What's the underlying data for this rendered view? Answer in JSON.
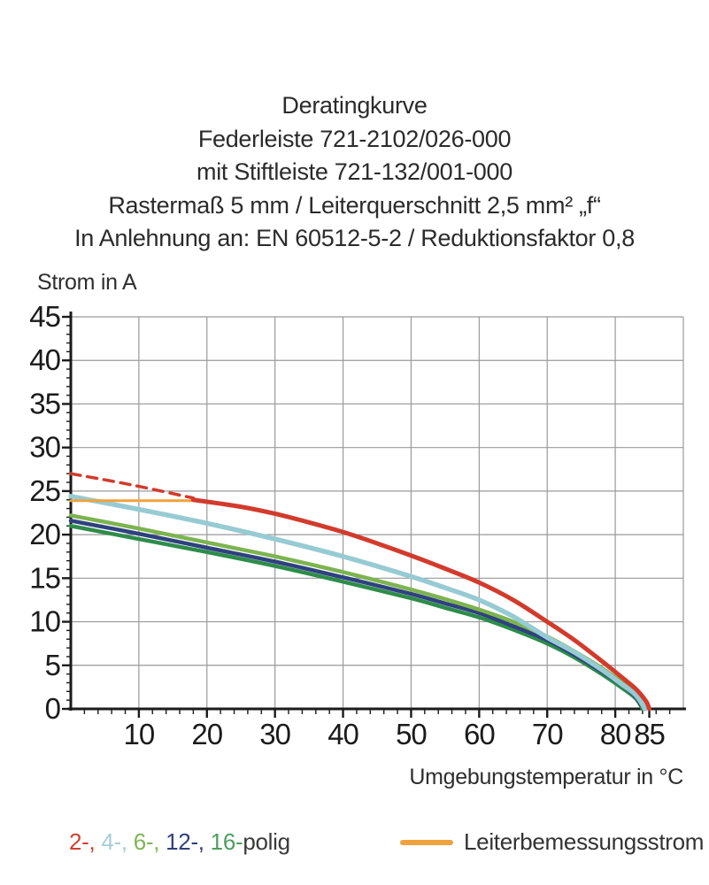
{
  "title": {
    "lines": [
      "Deratingkurve",
      "Federleiste 721-2102/026-000",
      "mit Stiftleiste 721-132/001-000",
      "Rastermaß 5 mm / Leiterquerschnitt 2,5 mm² „f“",
      "In Anlehnung an: EN 60512-5-2 / Reduktionsfaktor 0,8"
    ]
  },
  "legend": {
    "pole_tokens": [
      {
        "text": "2-,",
        "color": "#d0402f"
      },
      {
        "text": " 4-,",
        "color": "#a5ced4"
      },
      {
        "text": " 6-,",
        "color": "#7eb656"
      },
      {
        "text": " 12-,",
        "color": "#2e3f7c"
      },
      {
        "text": " 16-",
        "color": "#4d9f5f"
      },
      {
        "text": "polig",
        "color": "#3a3a3a"
      }
    ],
    "current_label": "Leiterbemessungsstrom",
    "current_color": "#f0a23c"
  },
  "chart_data": {
    "type": "line",
    "title": "Deratingkurve",
    "xlabel": "Umgebungstemperatur in °C",
    "ylabel": "Strom in A",
    "xlim": [
      0,
      90
    ],
    "ylim": [
      0,
      45
    ],
    "x_major_ticks": [
      10,
      20,
      30,
      40,
      50,
      60,
      70,
      80,
      85
    ],
    "x_minor_step": 2,
    "y_major_ticks": [
      0,
      5,
      10,
      15,
      20,
      25,
      30,
      35,
      40,
      45
    ],
    "y_minor_step": 1,
    "x_gridlines": [
      10,
      20,
      30,
      40,
      50,
      60,
      70,
      80,
      90
    ],
    "y_gridlines": [
      5,
      10,
      15,
      20,
      25,
      30,
      35,
      40,
      45
    ],
    "grid": true,
    "grid_color": "#9a9a9a",
    "axis_color": "#1b1b1b",
    "legend_position": "bottom",
    "series": [
      {
        "id": "sixteen-polig",
        "name": "16-polig",
        "color": "#2e8c49",
        "width": 4.5,
        "dash": null,
        "points": [
          [
            0,
            21.0
          ],
          [
            10,
            19.5
          ],
          [
            20,
            18.0
          ],
          [
            30,
            16.4
          ],
          [
            40,
            14.6
          ],
          [
            50,
            12.7
          ],
          [
            55,
            11.6
          ],
          [
            60,
            10.5
          ],
          [
            65,
            9.1
          ],
          [
            70,
            7.5
          ],
          [
            74,
            5.9
          ],
          [
            78,
            4.0
          ],
          [
            81,
            2.4
          ],
          [
            83,
            1.2
          ],
          [
            84,
            0
          ]
        ]
      },
      {
        "id": "twelve-polig",
        "name": "12-polig",
        "color": "#2e4180",
        "width": 4.5,
        "dash": null,
        "points": [
          [
            0,
            21.6
          ],
          [
            10,
            20.1
          ],
          [
            20,
            18.5
          ],
          [
            30,
            16.9
          ],
          [
            40,
            15.1
          ],
          [
            50,
            13.2
          ],
          [
            55,
            12.1
          ],
          [
            60,
            11.0
          ],
          [
            65,
            9.5
          ],
          [
            70,
            7.9
          ],
          [
            74,
            6.2
          ],
          [
            78,
            4.3
          ],
          [
            81,
            2.7
          ],
          [
            83,
            1.4
          ],
          [
            84.1,
            0
          ]
        ]
      },
      {
        "id": "six-polig",
        "name": "6-polig",
        "color": "#7cb44f",
        "width": 4.5,
        "dash": null,
        "points": [
          [
            0,
            22.2
          ],
          [
            10,
            20.7
          ],
          [
            20,
            19.1
          ],
          [
            30,
            17.5
          ],
          [
            40,
            15.7
          ],
          [
            50,
            13.7
          ],
          [
            55,
            12.6
          ],
          [
            60,
            11.4
          ],
          [
            65,
            10.0
          ],
          [
            70,
            8.3
          ],
          [
            74,
            6.6
          ],
          [
            78,
            4.7
          ],
          [
            81,
            3.0
          ],
          [
            83,
            1.7
          ],
          [
            84.2,
            0
          ]
        ]
      },
      {
        "id": "four-polig",
        "name": "4-polig",
        "color": "#97cbd3",
        "width": 5.5,
        "dash": null,
        "points": [
          [
            0,
            24.4
          ],
          [
            10,
            22.9
          ],
          [
            20,
            21.3
          ],
          [
            30,
            19.5
          ],
          [
            40,
            17.5
          ],
          [
            50,
            15.2
          ],
          [
            55,
            13.9
          ],
          [
            60,
            12.5
          ],
          [
            65,
            10.6
          ],
          [
            70,
            8.2
          ],
          [
            74,
            6.5
          ],
          [
            78,
            4.5
          ],
          [
            81,
            2.8
          ],
          [
            83,
            1.6
          ],
          [
            84.4,
            0
          ]
        ]
      },
      {
        "id": "leiterbemessungsstrom",
        "name": "Leiterbemessungsstrom",
        "color": "#f0a23c",
        "width": 3,
        "dash": null,
        "points": [
          [
            0,
            23.9
          ],
          [
            18,
            23.9
          ]
        ]
      },
      {
        "id": "two-polig-projection",
        "name": "2-polig (gestrichelt)",
        "color": "#d23b2c",
        "width": 3.5,
        "dash": "11 8",
        "points": [
          [
            0,
            27.0
          ],
          [
            9,
            25.7
          ],
          [
            18,
            24.2
          ]
        ]
      },
      {
        "id": "two-polig",
        "name": "2-polig",
        "color": "#d23b2c",
        "width": 5,
        "dash": null,
        "points": [
          [
            18,
            24.0
          ],
          [
            25,
            23.2
          ],
          [
            30,
            22.4
          ],
          [
            35,
            21.4
          ],
          [
            40,
            20.3
          ],
          [
            45,
            19.0
          ],
          [
            50,
            17.6
          ],
          [
            55,
            16.1
          ],
          [
            60,
            14.5
          ],
          [
            65,
            12.5
          ],
          [
            70,
            10.0
          ],
          [
            74,
            7.9
          ],
          [
            78,
            5.5
          ],
          [
            81,
            3.6
          ],
          [
            83,
            2.3
          ],
          [
            84.5,
            0.9
          ],
          [
            85,
            0
          ]
        ]
      }
    ]
  }
}
